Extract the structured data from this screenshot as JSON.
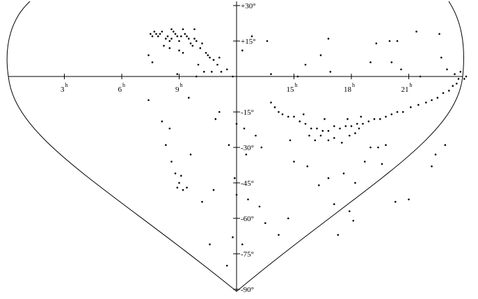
{
  "chart_data": {
    "type": "scatter",
    "projection": "sky map, right ascension 0h–24h horizontal, declination +30° to -90° vertical",
    "grid": false,
    "ra_ticks": [
      {
        "value": 3,
        "label": "3",
        "sup": "h"
      },
      {
        "value": 6,
        "label": "6",
        "sup": "h"
      },
      {
        "value": 9,
        "label": "9",
        "sup": "h"
      },
      {
        "value": 15,
        "label": "15",
        "sup": "h"
      },
      {
        "value": 18,
        "label": "18",
        "sup": "h"
      },
      {
        "value": 21,
        "label": "21",
        "sup": "h"
      }
    ],
    "dec_ticks": [
      {
        "value": 30,
        "label": "+30°"
      },
      {
        "value": 15,
        "label": "+15°"
      },
      {
        "value": -15,
        "label": "-15°"
      },
      {
        "value": -30,
        "label": "-30°"
      },
      {
        "value": -45,
        "label": "-45°"
      },
      {
        "value": -60,
        "label": "-60°"
      },
      {
        "value": -75,
        "label": "-75°"
      },
      {
        "value": -90,
        "label": "-90°"
      }
    ],
    "points": [
      [
        7.5,
        18
      ],
      [
        7.6,
        17
      ],
      [
        7.7,
        19
      ],
      [
        7.8,
        18
      ],
      [
        7.9,
        17
      ],
      [
        8.0,
        18
      ],
      [
        8.1,
        19
      ],
      [
        8.3,
        16
      ],
      [
        8.4,
        17
      ],
      [
        8.5,
        15
      ],
      [
        8.6,
        16
      ],
      [
        8.7,
        19
      ],
      [
        8.8,
        18
      ],
      [
        8.9,
        17
      ],
      [
        9.0,
        15
      ],
      [
        9.1,
        17
      ],
      [
        9.3,
        18
      ],
      [
        9.4,
        17
      ],
      [
        9.5,
        16
      ],
      [
        9.6,
        14
      ],
      [
        9.7,
        13
      ],
      [
        9.8,
        16
      ],
      [
        9.9,
        15
      ],
      [
        10.1,
        12
      ],
      [
        10.2,
        14
      ],
      [
        10.4,
        10
      ],
      [
        10.5,
        9
      ],
      [
        10.6,
        8
      ],
      [
        10.8,
        7
      ],
      [
        11.0,
        5
      ],
      [
        9.2,
        20
      ],
      [
        9.8,
        20
      ],
      [
        8.6,
        20
      ],
      [
        8.2,
        13
      ],
      [
        8.5,
        12
      ],
      [
        9.0,
        11
      ],
      [
        9.2,
        10
      ],
      [
        10.0,
        5
      ],
      [
        10.3,
        2
      ],
      [
        10.7,
        2
      ],
      [
        11.2,
        2
      ],
      [
        11.5,
        3
      ],
      [
        11.8,
        0
      ],
      [
        7.4,
        9
      ],
      [
        7.6,
        6
      ],
      [
        8.9,
        1
      ],
      [
        9.9,
        0
      ],
      [
        11.1,
        8
      ],
      [
        12.3,
        11
      ],
      [
        12.8,
        17
      ],
      [
        13.6,
        15
      ],
      [
        16.8,
        16
      ],
      [
        19.3,
        14
      ],
      [
        20.0,
        15
      ],
      [
        20.4,
        15
      ],
      [
        21.4,
        19
      ],
      [
        22.6,
        18
      ],
      [
        13.8,
        1
      ],
      [
        15.2,
        0
      ],
      [
        15.6,
        5
      ],
      [
        16.4,
        9
      ],
      [
        16.9,
        2
      ],
      [
        19.0,
        6
      ],
      [
        20.1,
        6
      ],
      [
        20.6,
        3
      ],
      [
        21.6,
        0
      ],
      [
        22.7,
        8
      ],
      [
        23.0,
        3
      ],
      [
        23.4,
        1
      ],
      [
        23.7,
        2
      ],
      [
        24.0,
        0
      ],
      [
        23.9,
        -1
      ],
      [
        23.6,
        -1
      ],
      [
        23.5,
        -3
      ],
      [
        23.3,
        -4
      ],
      [
        23.1,
        -6
      ],
      [
        22.8,
        -7
      ],
      [
        22.5,
        -9
      ],
      [
        22.2,
        -10
      ],
      [
        21.9,
        -11
      ],
      [
        21.5,
        -12
      ],
      [
        21.1,
        -13
      ],
      [
        20.7,
        -15
      ],
      [
        20.4,
        -15
      ],
      [
        20.1,
        -16
      ],
      [
        19.8,
        -17
      ],
      [
        19.5,
        -18
      ],
      [
        19.2,
        -18
      ],
      [
        18.9,
        -19
      ],
      [
        18.6,
        -20
      ],
      [
        18.3,
        -20
      ],
      [
        18.0,
        -21
      ],
      [
        17.7,
        -21
      ],
      [
        17.4,
        -22
      ],
      [
        17.1,
        -21
      ],
      [
        16.8,
        -23
      ],
      [
        16.5,
        -23
      ],
      [
        16.2,
        -22
      ],
      [
        15.9,
        -22
      ],
      [
        15.6,
        -20
      ],
      [
        15.3,
        -19
      ],
      [
        15.0,
        -17
      ],
      [
        14.7,
        -17
      ],
      [
        14.4,
        -16
      ],
      [
        14.2,
        -15
      ],
      [
        14.0,
        -13
      ],
      [
        13.8,
        -11
      ],
      [
        16.4,
        -25
      ],
      [
        16.8,
        -27
      ],
      [
        17.1,
        -26
      ],
      [
        17.5,
        -28
      ],
      [
        17.9,
        -25
      ],
      [
        18.2,
        -24
      ],
      [
        18.4,
        -22
      ],
      [
        15.8,
        -25
      ],
      [
        16.1,
        -27
      ],
      [
        17.8,
        -18
      ],
      [
        18.5,
        -17
      ],
      [
        16.6,
        -18
      ],
      [
        15.5,
        -16
      ],
      [
        19.0,
        -30
      ],
      [
        19.4,
        -30
      ],
      [
        19.8,
        -29
      ],
      [
        12.0,
        -20
      ],
      [
        12.4,
        -22
      ],
      [
        13.0,
        -25
      ],
      [
        12.5,
        -33
      ],
      [
        13.3,
        -30
      ],
      [
        14.8,
        -27
      ],
      [
        15.0,
        -36
      ],
      [
        15.7,
        -38
      ],
      [
        16.3,
        -46
      ],
      [
        16.8,
        -43
      ],
      [
        17.6,
        -41
      ],
      [
        18.2,
        -45
      ],
      [
        18.7,
        -36
      ],
      [
        19.6,
        -37
      ],
      [
        20.3,
        -53
      ],
      [
        21.0,
        -52
      ],
      [
        22.2,
        -38
      ],
      [
        22.4,
        -33
      ],
      [
        22.9,
        -29
      ],
      [
        12.0,
        -50
      ],
      [
        12.6,
        -52
      ],
      [
        13.2,
        -55
      ],
      [
        13.5,
        -62
      ],
      [
        14.2,
        -67
      ],
      [
        14.7,
        -60
      ],
      [
        17.1,
        -54
      ],
      [
        17.9,
        -57
      ],
      [
        18.1,
        -61
      ],
      [
        17.3,
        -67
      ],
      [
        12.3,
        -71
      ],
      [
        11.8,
        -68
      ],
      [
        11.5,
        -80
      ],
      [
        10.6,
        -71
      ],
      [
        10.2,
        -53
      ],
      [
        8.6,
        -36
      ],
      [
        8.8,
        -41
      ],
      [
        8.9,
        -47
      ],
      [
        9.0,
        -45
      ],
      [
        9.1,
        -42
      ],
      [
        9.2,
        -48
      ],
      [
        9.4,
        -47
      ],
      [
        8.3,
        -29
      ],
      [
        8.1,
        -19
      ],
      [
        8.5,
        -22
      ],
      [
        9.6,
        -33
      ],
      [
        10.8,
        -48
      ],
      [
        11.9,
        -43
      ],
      [
        11.6,
        -29
      ],
      [
        11.1,
        -15
      ],
      [
        7.4,
        -10
      ],
      [
        9.5,
        -9
      ],
      [
        10.9,
        -18
      ]
    ]
  }
}
